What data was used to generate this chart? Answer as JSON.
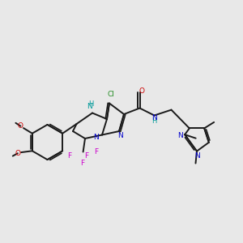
{
  "background_color": "#e8e8e8",
  "bond_color": "#1a1a1a",
  "figsize": [
    3.0,
    3.0
  ],
  "dpi": 100,
  "colors": {
    "N": "#0000cc",
    "O": "#cc0000",
    "F": "#cc00cc",
    "Cl": "#228B22",
    "NH": "#009999",
    "bond": "#1a1a1a",
    "C": "#1a1a1a"
  }
}
